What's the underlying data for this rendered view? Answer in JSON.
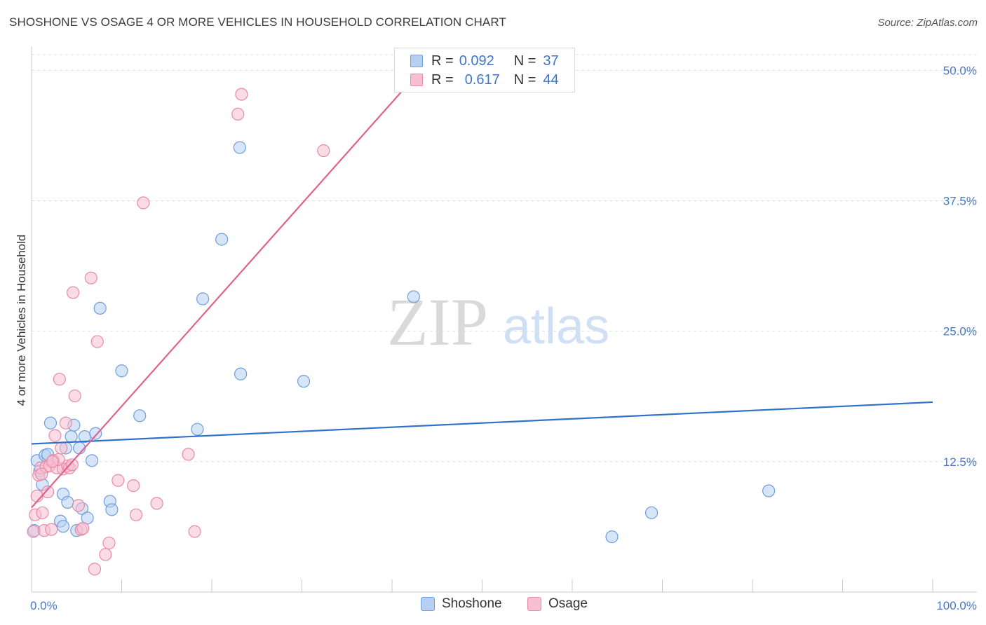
{
  "title": "SHOSHONE VS OSAGE 4 OR MORE VEHICLES IN HOUSEHOLD CORRELATION CHART",
  "source": "Source: ZipAtlas.com",
  "watermark": {
    "part1": "ZIP",
    "part2": "atlas"
  },
  "legend": {
    "rows": [
      {
        "r_label": "R =",
        "r_value": "0.092",
        "n_label": "N =",
        "n_value": "37"
      },
      {
        "r_label": "R =",
        "r_value": "0.617",
        "n_label": "N =",
        "n_value": "44"
      }
    ]
  },
  "bottom_legend": [
    "Shoshone",
    "Osage"
  ],
  "colors": {
    "shoshone_fill": "#b7d0f2",
    "shoshone_stroke": "#6f9ddd",
    "shoshone_line": "#2f72c9",
    "osage_fill": "#f7c0d0",
    "osage_stroke": "#e88aa8",
    "osage_line": "#e0628c",
    "grid": "#dddddd",
    "tick_label": "#4a78c7"
  },
  "chart_data": {
    "type": "scatter",
    "title": "SHOSHONE VS OSAGE 4 OR MORE VEHICLES IN HOUSEHOLD CORRELATION CHART",
    "xlabel": "",
    "ylabel": "4 or more Vehicles in Household",
    "xlim": [
      0,
      100
    ],
    "ylim": [
      0,
      51.5
    ],
    "x_tick_labels": [
      "0.0%",
      "100.0%"
    ],
    "y_ticks": [
      12.5,
      25.0,
      37.5,
      50.0
    ],
    "y_tick_labels": [
      "12.5%",
      "25.0%",
      "37.5%",
      "50.0%"
    ],
    "grid": true,
    "legend_position": "top-center",
    "series": [
      {
        "name": "Shoshone",
        "r": 0.092,
        "n": 37,
        "trend": {
          "x": [
            0,
            100
          ],
          "y": [
            14.2,
            18.2
          ]
        },
        "points": [
          [
            0.6,
            12.6
          ],
          [
            0.9,
            11.6
          ],
          [
            1.2,
            10.3
          ],
          [
            1.5,
            13.1
          ],
          [
            1.8,
            13.2
          ],
          [
            2.1,
            16.2
          ],
          [
            2.4,
            12.6
          ],
          [
            3.2,
            6.8
          ],
          [
            3.5,
            6.3
          ],
          [
            3.5,
            9.4
          ],
          [
            3.8,
            13.8
          ],
          [
            4.0,
            8.6
          ],
          [
            4.4,
            14.9
          ],
          [
            4.7,
            16.0
          ],
          [
            5.0,
            5.9
          ],
          [
            5.3,
            13.8
          ],
          [
            5.6,
            8.0
          ],
          [
            5.9,
            14.9
          ],
          [
            6.2,
            7.1
          ],
          [
            6.7,
            12.6
          ],
          [
            7.1,
            15.2
          ],
          [
            7.6,
            27.2
          ],
          [
            8.7,
            8.7
          ],
          [
            8.9,
            7.9
          ],
          [
            10.0,
            21.2
          ],
          [
            12.0,
            16.9
          ],
          [
            18.4,
            15.6
          ],
          [
            19.0,
            28.1
          ],
          [
            21.1,
            33.8
          ],
          [
            23.1,
            42.6
          ],
          [
            23.2,
            20.9
          ],
          [
            30.2,
            20.2
          ],
          [
            42.4,
            28.3
          ],
          [
            64.4,
            5.3
          ],
          [
            68.8,
            7.6
          ],
          [
            81.8,
            9.7
          ],
          [
            0.3,
            5.9
          ]
        ]
      },
      {
        "name": "Osage",
        "r": 0.617,
        "n": 44,
        "trend": {
          "x": [
            0,
            41.0
          ],
          "y": [
            8.1,
            47.9
          ]
        },
        "points": [
          [
            0.2,
            5.8
          ],
          [
            0.4,
            7.4
          ],
          [
            0.6,
            9.2
          ],
          [
            0.8,
            11.2
          ],
          [
            1.0,
            11.9
          ],
          [
            1.2,
            7.6
          ],
          [
            1.4,
            5.9
          ],
          [
            1.6,
            12.0
          ],
          [
            1.8,
            9.6
          ],
          [
            2.0,
            12.1
          ],
          [
            2.2,
            6.0
          ],
          [
            2.4,
            12.6
          ],
          [
            2.6,
            15.0
          ],
          [
            2.8,
            11.9
          ],
          [
            3.1,
            20.4
          ],
          [
            3.3,
            13.8
          ],
          [
            3.5,
            11.8
          ],
          [
            3.8,
            16.2
          ],
          [
            4.0,
            12.1
          ],
          [
            4.2,
            11.9
          ],
          [
            4.6,
            28.7
          ],
          [
            4.8,
            18.8
          ],
          [
            5.2,
            8.3
          ],
          [
            5.5,
            6.0
          ],
          [
            6.6,
            30.1
          ],
          [
            7.0,
            2.2
          ],
          [
            7.3,
            24.0
          ],
          [
            8.2,
            3.6
          ],
          [
            8.6,
            4.7
          ],
          [
            9.6,
            10.7
          ],
          [
            11.3,
            10.2
          ],
          [
            11.6,
            7.4
          ],
          [
            12.4,
            37.3
          ],
          [
            13.9,
            8.5
          ],
          [
            17.4,
            13.2
          ],
          [
            18.1,
            5.8
          ],
          [
            22.9,
            45.8
          ],
          [
            23.3,
            47.7
          ],
          [
            32.4,
            42.3
          ],
          [
            3.0,
            12.7
          ],
          [
            1.1,
            11.3
          ],
          [
            2.3,
            12.5
          ],
          [
            4.5,
            12.2
          ],
          [
            5.7,
            6.1
          ]
        ]
      }
    ]
  }
}
